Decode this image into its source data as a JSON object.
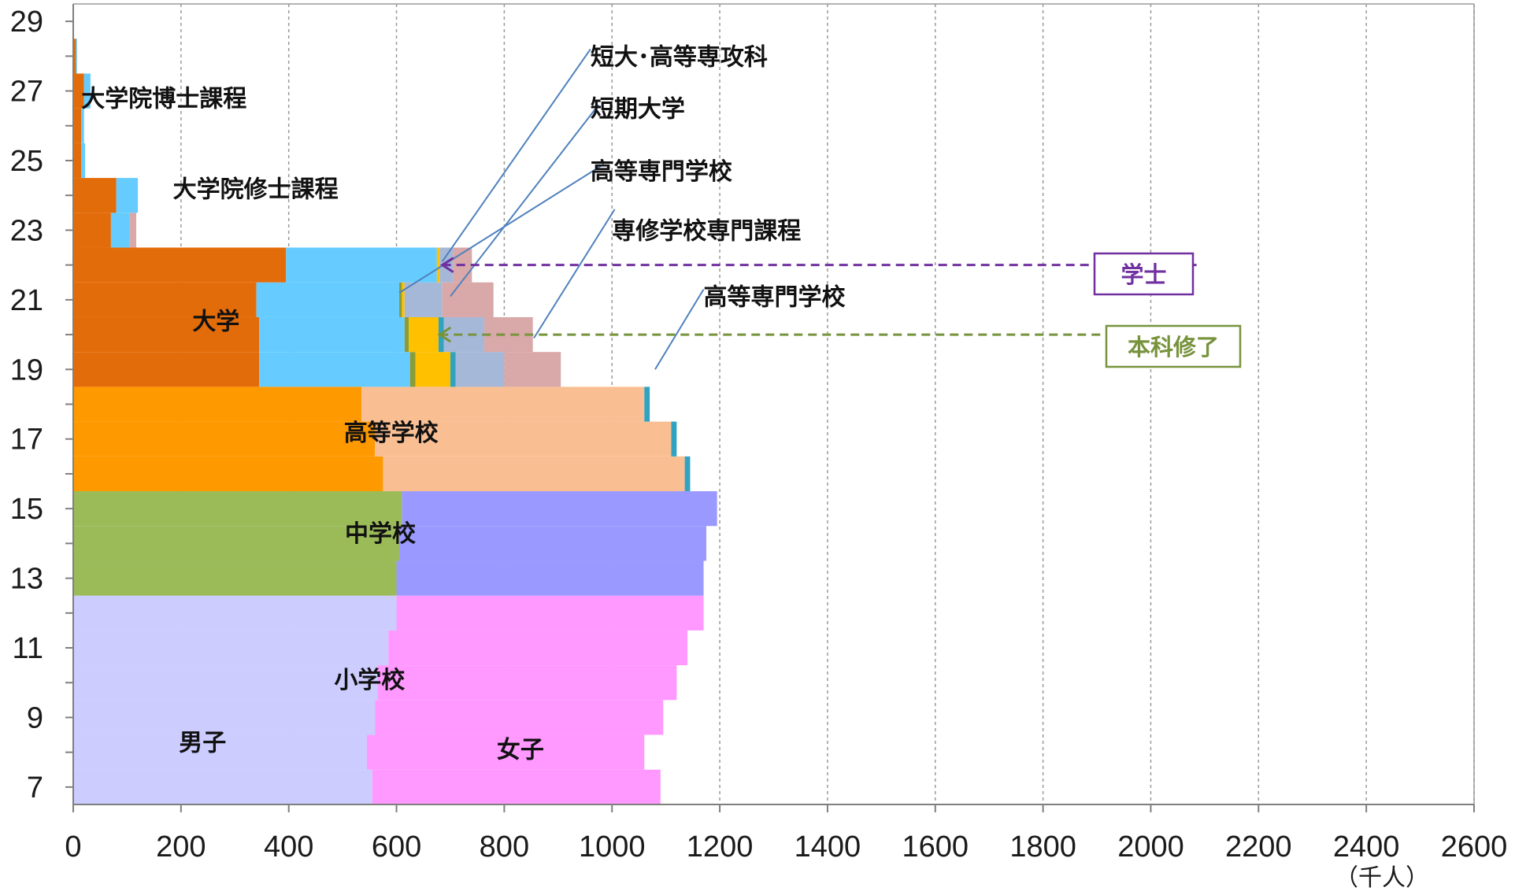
{
  "chart_data": {
    "type": "bar",
    "orientation": "horizontal-stacked",
    "x_axis": {
      "min": 0,
      "max": 2600,
      "step": 200,
      "unit_label": "（千人）",
      "ticks": [
        "0",
        "200",
        "400",
        "600",
        "800",
        "1000",
        "1200",
        "1400",
        "1600",
        "1800",
        "2000",
        "2200",
        "2400",
        "2600"
      ]
    },
    "y_axis": {
      "min_age": 7,
      "max_age": 29,
      "ticks": [
        "29",
        "27",
        "25",
        "23",
        "21",
        "19",
        "17",
        "15",
        "13",
        "11",
        "9",
        "7"
      ]
    },
    "grid": "vertical dashed",
    "colors": {
      "elem_m": "#ccccff",
      "elem_f": "#ff99ff",
      "jh_m": "#9bbb59",
      "jh_f": "#9999ff",
      "hs_m": "#ff9900",
      "hs_f": "#f9bf93",
      "univ_m": "#e36c0a",
      "univ_f": "#66ccff",
      "kosen": "#31a3c0",
      "kosen_f": "#6ac6e0",
      "junior_college": "#ffc000",
      "junior_college_dark": "#8a9c3a",
      "senmon_m": "#a6b8d8",
      "senmon_f": "#d9a8a8"
    },
    "ages": [
      {
        "age": 7,
        "segments": [
          {
            "key": "elem_m",
            "value": 555
          },
          {
            "key": "elem_f",
            "value": 535
          }
        ]
      },
      {
        "age": 8,
        "segments": [
          {
            "key": "elem_m",
            "value": 545
          },
          {
            "key": "elem_f",
            "value": 515
          }
        ]
      },
      {
        "age": 9,
        "segments": [
          {
            "key": "elem_m",
            "value": 560
          },
          {
            "key": "elem_f",
            "value": 535
          }
        ]
      },
      {
        "age": 10,
        "segments": [
          {
            "key": "elem_m",
            "value": 565
          },
          {
            "key": "elem_f",
            "value": 555
          }
        ]
      },
      {
        "age": 11,
        "segments": [
          {
            "key": "elem_m",
            "value": 585
          },
          {
            "key": "elem_f",
            "value": 555
          }
        ]
      },
      {
        "age": 12,
        "segments": [
          {
            "key": "elem_m",
            "value": 600
          },
          {
            "key": "elem_f",
            "value": 570
          }
        ]
      },
      {
        "age": 13,
        "segments": [
          {
            "key": "jh_m",
            "value": 600
          },
          {
            "key": "jh_f",
            "value": 570
          }
        ]
      },
      {
        "age": 14,
        "segments": [
          {
            "key": "jh_m",
            "value": 605
          },
          {
            "key": "jh_f",
            "value": 570
          }
        ]
      },
      {
        "age": 15,
        "segments": [
          {
            "key": "jh_m",
            "value": 610
          },
          {
            "key": "jh_f",
            "value": 585
          }
        ]
      },
      {
        "age": 16,
        "segments": [
          {
            "key": "hs_m",
            "value": 575
          },
          {
            "key": "hs_f",
            "value": 560
          },
          {
            "key": "kosen",
            "value": 10
          }
        ]
      },
      {
        "age": 17,
        "segments": [
          {
            "key": "hs_m",
            "value": 560
          },
          {
            "key": "hs_f",
            "value": 550
          },
          {
            "key": "kosen",
            "value": 10
          }
        ]
      },
      {
        "age": 18,
        "segments": [
          {
            "key": "hs_m",
            "value": 535
          },
          {
            "key": "hs_f",
            "value": 525
          },
          {
            "key": "kosen",
            "value": 10
          }
        ]
      },
      {
        "age": 19,
        "segments": [
          {
            "key": "univ_m",
            "value": 345
          },
          {
            "key": "univ_f",
            "value": 280
          },
          {
            "key": "junior_college_dark",
            "value": 10
          },
          {
            "key": "junior_college",
            "value": 65
          },
          {
            "key": "kosen",
            "value": 10
          },
          {
            "key": "senmon_m",
            "value": 90
          },
          {
            "key": "senmon_f",
            "value": 105
          }
        ]
      },
      {
        "age": 20,
        "segments": [
          {
            "key": "univ_m",
            "value": 345
          },
          {
            "key": "univ_f",
            "value": 270
          },
          {
            "key": "junior_college_dark",
            "value": 8
          },
          {
            "key": "junior_college",
            "value": 55
          },
          {
            "key": "kosen",
            "value": 10
          },
          {
            "key": "senmon_m",
            "value": 75
          },
          {
            "key": "senmon_f",
            "value": 90
          }
        ]
      },
      {
        "age": 21,
        "segments": [
          {
            "key": "univ_m",
            "value": 340
          },
          {
            "key": "univ_f",
            "value": 265
          },
          {
            "key": "junior_college_dark",
            "value": 5
          },
          {
            "key": "junior_college",
            "value": 5
          },
          {
            "key": "senmon_m",
            "value": 70
          },
          {
            "key": "senmon_f",
            "value": 95
          }
        ]
      },
      {
        "age": 22,
        "segments": [
          {
            "key": "univ_m",
            "value": 395
          },
          {
            "key": "univ_f",
            "value": 280
          },
          {
            "key": "junior_college",
            "value": 5
          },
          {
            "key": "senmon_m",
            "value": 25
          },
          {
            "key": "senmon_f",
            "value": 35
          }
        ]
      },
      {
        "age": 23,
        "segments": [
          {
            "key": "univ_m",
            "value": 70
          },
          {
            "key": "univ_f",
            "value": 35
          },
          {
            "key": "senmon_f",
            "value": 12
          }
        ]
      },
      {
        "age": 24,
        "segments": [
          {
            "key": "univ_m",
            "value": 80
          },
          {
            "key": "univ_f",
            "value": 40
          }
        ]
      },
      {
        "age": 25,
        "segments": [
          {
            "key": "univ_m",
            "value": 15
          },
          {
            "key": "univ_f",
            "value": 7
          }
        ]
      },
      {
        "age": 26,
        "segments": [
          {
            "key": "univ_m",
            "value": 15
          },
          {
            "key": "univ_f",
            "value": 5
          }
        ]
      },
      {
        "age": 27,
        "segments": [
          {
            "key": "univ_m",
            "value": 20
          },
          {
            "key": "univ_f",
            "value": 12
          }
        ]
      },
      {
        "age": 28,
        "segments": [
          {
            "key": "univ_m",
            "value": 5
          },
          {
            "key": "univ_f",
            "value": 2
          }
        ]
      }
    ],
    "labels": [
      {
        "text": "大学院博士課程",
        "x": 15,
        "age": 26.8,
        "anchor": "start"
      },
      {
        "text": "大学院修士課程",
        "x": 185,
        "age": 24.2,
        "anchor": "start"
      },
      {
        "text": "大学",
        "x": 265,
        "age": 20.4,
        "anchor": "middle"
      },
      {
        "text": "高等学校",
        "x": 590,
        "age": 17.2,
        "anchor": "middle"
      },
      {
        "text": "中学校",
        "x": 570,
        "age": 14.3,
        "anchor": "middle"
      },
      {
        "text": "小学校",
        "x": 550,
        "age": 10.1,
        "anchor": "middle"
      },
      {
        "text": "男子",
        "x": 240,
        "age": 8.3,
        "anchor": "middle"
      },
      {
        "text": "女子",
        "x": 830,
        "age": 8.1,
        "anchor": "middle"
      },
      {
        "text": "短大･高等専攻科",
        "x": 960,
        "age": 28.0,
        "anchor": "start"
      },
      {
        "text": "短期大学",
        "x": 960,
        "age": 26.5,
        "anchor": "start"
      },
      {
        "text": "高等専門学校",
        "x": 960,
        "age": 24.7,
        "anchor": "start"
      },
      {
        "text": "専修学校専門課程",
        "x": 1000,
        "age": 23.0,
        "anchor": "start"
      },
      {
        "text": "高等専門学校",
        "x": 1170,
        "age": 21.1,
        "anchor": "start"
      }
    ],
    "leader_lines": [
      {
        "from": [
          960,
          28.2
        ],
        "to": [
          685,
          22.1
        ],
        "color": "#4f81bd"
      },
      {
        "from": [
          975,
          26.6
        ],
        "to": [
          700,
          21.1
        ],
        "color": "#4f81bd"
      },
      {
        "from": [
          985,
          24.9
        ],
        "to": [
          605,
          21.2
        ],
        "color": "#4f81bd"
      },
      {
        "from": [
          1005,
          23.6
        ],
        "to": [
          855,
          19.9
        ],
        "color": "#4f81bd"
      },
      {
        "from": [
          1170,
          21.3
        ],
        "to": [
          1080,
          19.0
        ],
        "color": "#4f81bd"
      }
    ],
    "reference_lines": [
      {
        "age": 22.0,
        "x_start": 685,
        "x_end": 2085,
        "color": "#7030a0",
        "label": "学士"
      },
      {
        "age": 20.0,
        "x_start": 680,
        "x_end": 2085,
        "color": "#77933c",
        "label": "本科修了"
      }
    ]
  }
}
